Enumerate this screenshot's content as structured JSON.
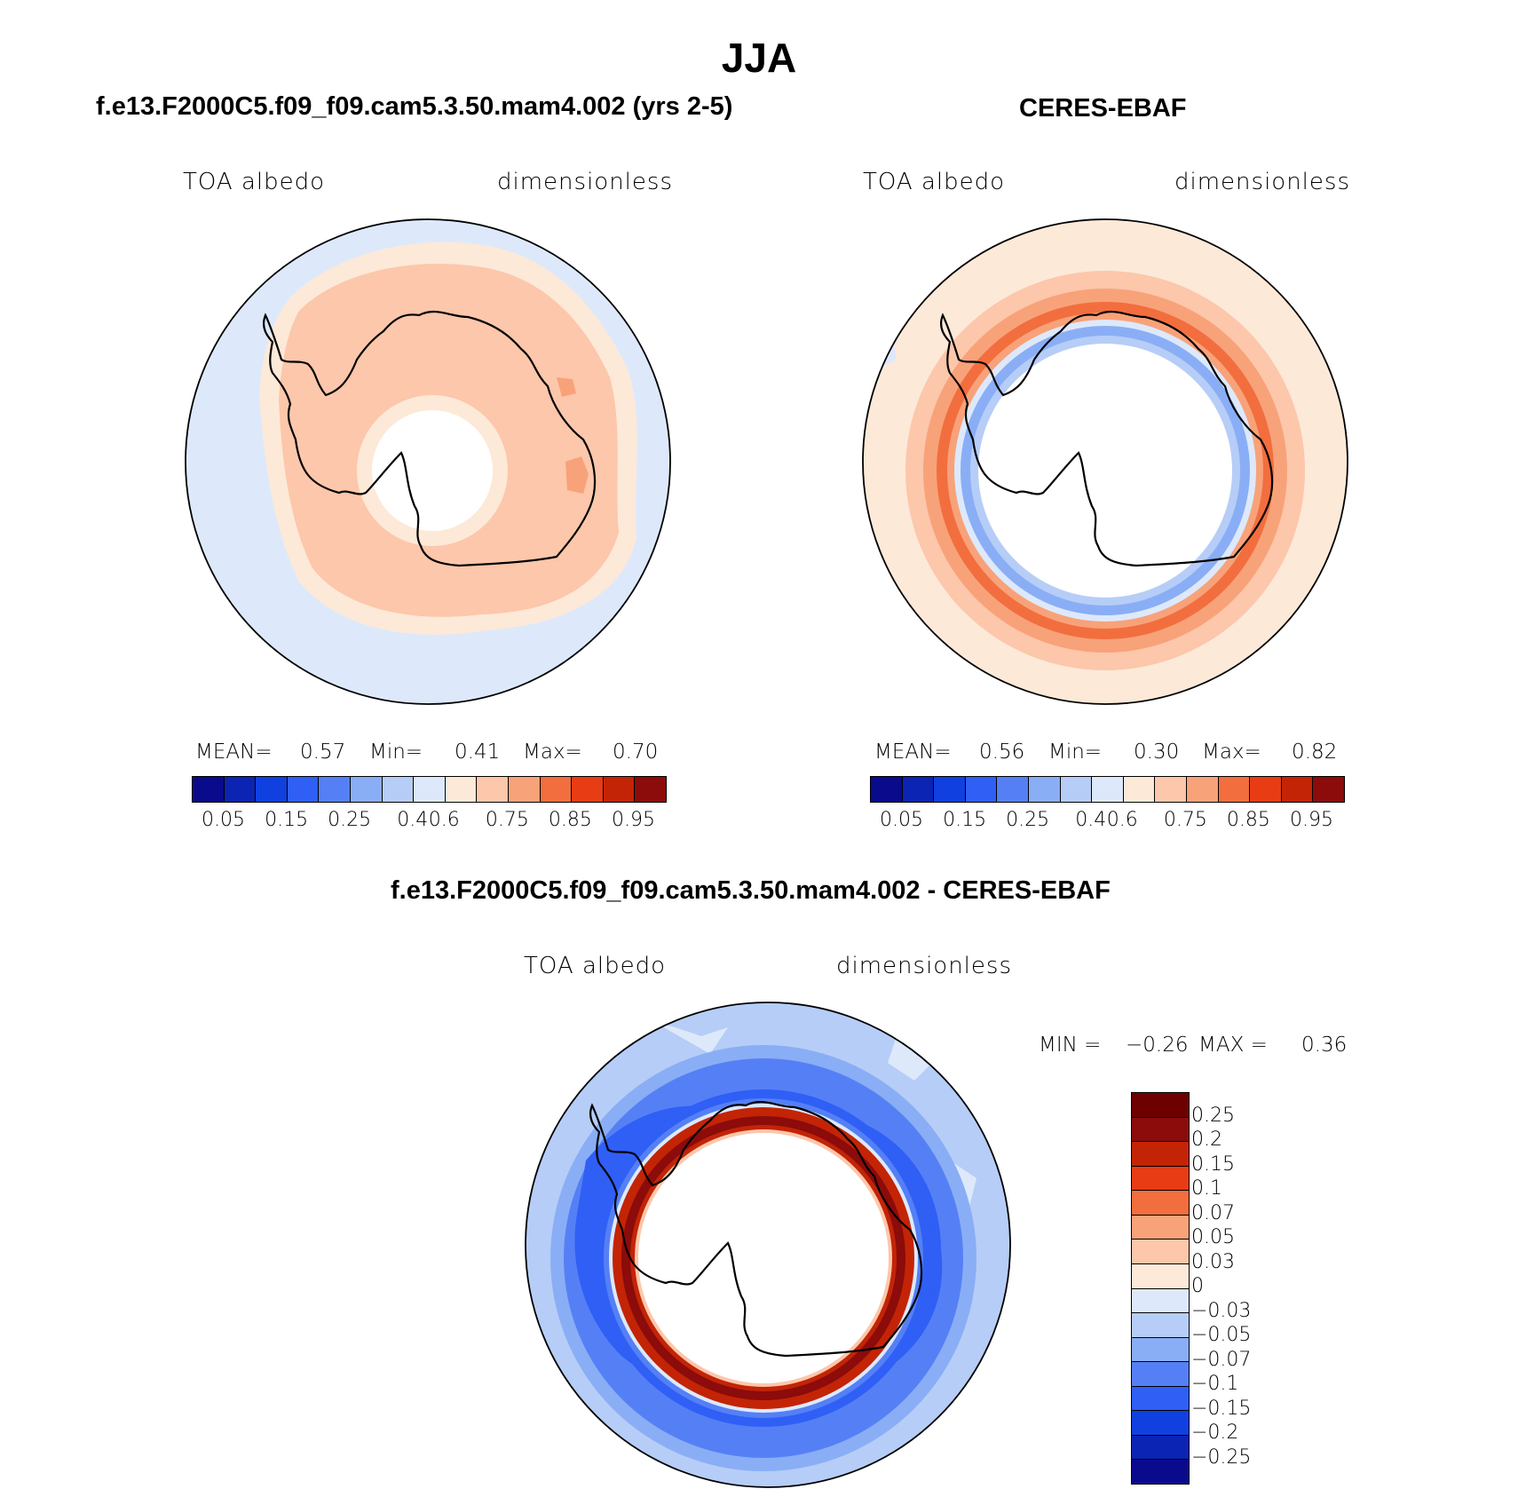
{
  "page_title": "JJA",
  "colors": {
    "lev15": [
      "#0a0a8c",
      "#0b24b3",
      "#1040e0",
      "#2f5ff5",
      "#5580f5",
      "#8aaef5",
      "#b6cdf7",
      "#dde9fb",
      "#fde9d8",
      "#fcc7ab",
      "#f8a27a",
      "#f26e3e",
      "#e83c14",
      "#c32406",
      "#8c0b0b"
    ],
    "lev16": [
      "#0a0a8c",
      "#0b24b3",
      "#1040e0",
      "#2f5ff5",
      "#5580f5",
      "#8aaef5",
      "#b6cdf7",
      "#dde9fb",
      "#fde9d8",
      "#fcc7ab",
      "#f8a27a",
      "#f26e3e",
      "#e83c14",
      "#c32406",
      "#8c0b0b",
      "#6e0000"
    ]
  },
  "chart_data": [
    {
      "type": "heatmap",
      "projection": "south-polar-stereographic",
      "title": "f.e13.F2000C5.f09_f09.cam5.3.50.mam4.002 (yrs 2-5)",
      "variable": "TOA albedo",
      "units": "dimensionless",
      "stats": {
        "mean_label": "MEAN=",
        "mean": "0.57",
        "min_label": "Min=",
        "min": "0.41",
        "max_label": "Max=",
        "max": "0.70"
      },
      "colorbar": {
        "ticks": [
          "0.05",
          "0.15",
          "0.25",
          "0.4",
          "0.6",
          "0.75",
          "0.85",
          "0.95"
        ]
      }
    },
    {
      "type": "heatmap",
      "projection": "south-polar-stereographic",
      "title": "CERES-EBAF",
      "variable": "TOA albedo",
      "units": "dimensionless",
      "stats": {
        "mean_label": "MEAN=",
        "mean": "0.56",
        "min_label": "Min=",
        "min": "0.30",
        "max_label": "Max=",
        "max": "0.82"
      },
      "colorbar": {
        "ticks": [
          "0.05",
          "0.15",
          "0.25",
          "0.4",
          "0.6",
          "0.75",
          "0.85",
          "0.95"
        ]
      }
    },
    {
      "type": "heatmap",
      "projection": "south-polar-stereographic",
      "title": "f.e13.F2000C5.f09_f09.cam5.3.50.mam4.002 - CERES-EBAF",
      "variable": "TOA albedo",
      "units": "dimensionless",
      "stats": {
        "min_label": "MIN =",
        "min": "−0.26",
        "max_label": "MAX =",
        "max": "0.36"
      },
      "colorbar": {
        "ticks": [
          "0.25",
          "0.2",
          "0.15",
          "0.1",
          "0.07",
          "0.05",
          "0.03",
          "0",
          "−0.03",
          "−0.05",
          "−0.07",
          "−0.1",
          "−0.15",
          "−0.2",
          "−0.25"
        ]
      }
    }
  ]
}
